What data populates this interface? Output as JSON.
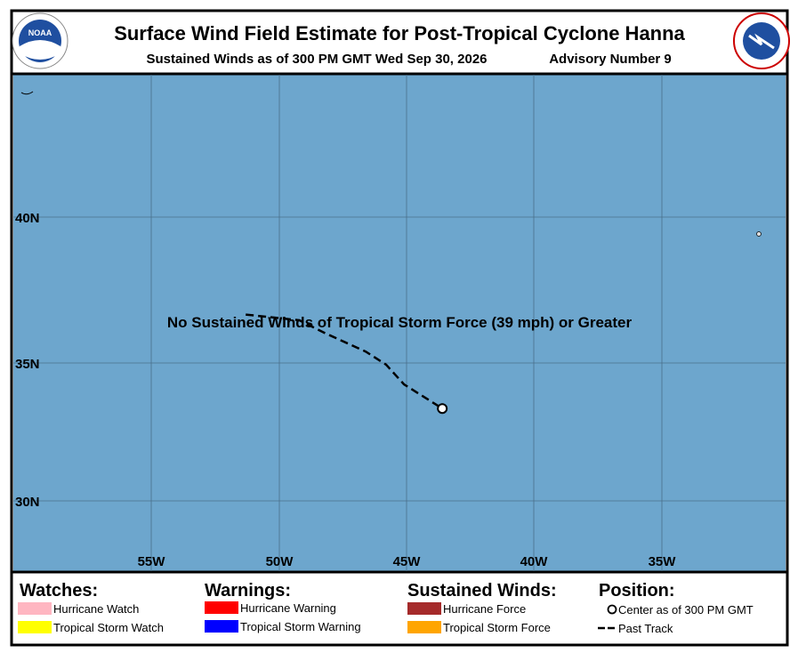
{
  "header": {
    "title": "Surface Wind Field Estimate for Post-Tropical Cyclone Hanna",
    "subtitle": "Sustained Winds as of 300 PM GMT Wed Sep 30, 2026",
    "advisory": "Advisory Number 9"
  },
  "map": {
    "note": "No Sustained Winds of Tropical Storm Force (39 mph) or Greater",
    "lon_labels": [
      "55W",
      "50W",
      "45W",
      "40W",
      "35W"
    ],
    "lat_labels": [
      "40N",
      "35N",
      "30N"
    ],
    "track": {
      "lon": [
        51.3,
        49.2,
        48.2,
        46.6,
        45.8,
        45.1,
        43.6
      ],
      "lat": [
        36.7,
        36.5,
        36.05,
        35.4,
        34.94,
        34.25,
        33.4
      ]
    }
  },
  "legend": {
    "watches": {
      "title": "Watches:",
      "items": [
        "Hurricane Watch",
        "Tropical Storm Watch"
      ]
    },
    "warnings": {
      "title": "Warnings:",
      "items": [
        "Hurricane Warning",
        "Tropical Storm Warning"
      ]
    },
    "winds": {
      "title": "Sustained Winds:",
      "items": [
        "Hurricane Force",
        "Tropical Storm Force"
      ]
    },
    "position": {
      "title": "Position:",
      "items": [
        "Center as of 300 PM GMT",
        "Past Track"
      ]
    }
  }
}
